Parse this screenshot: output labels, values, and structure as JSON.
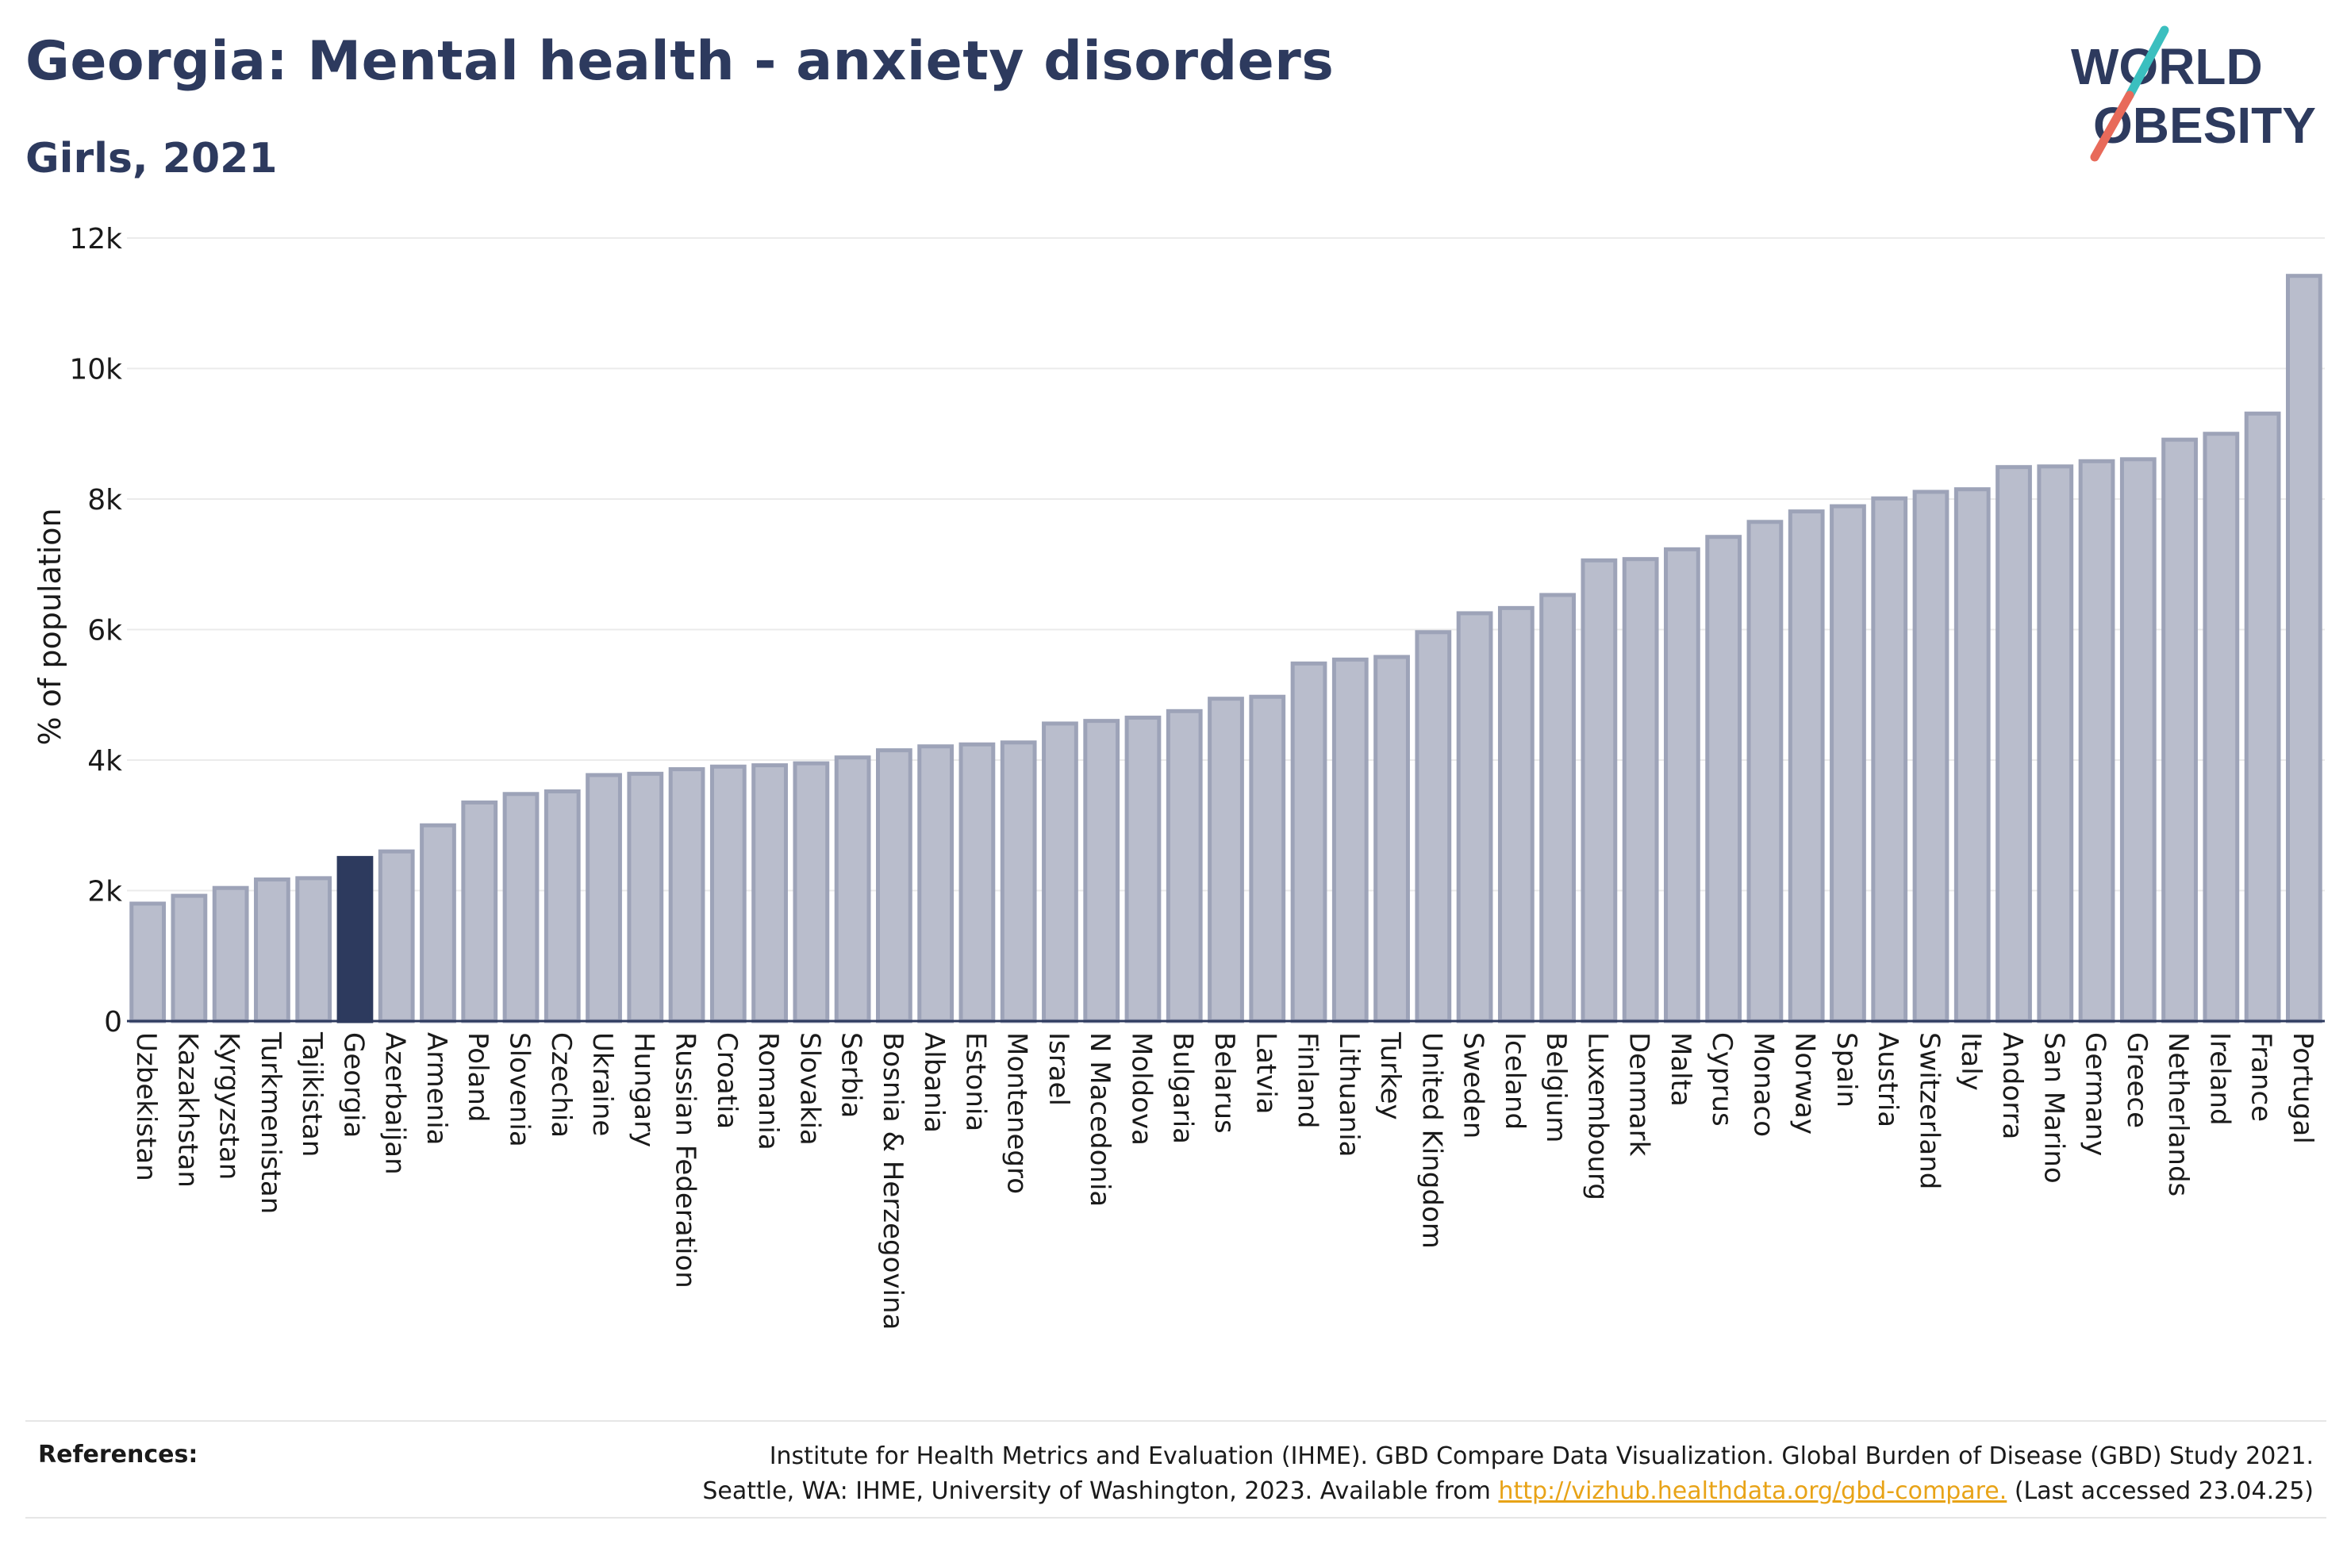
{
  "header": {
    "title": "Georgia: Mental health - anxiety disorders",
    "subtitle": "Girls, 2021"
  },
  "logo": {
    "line1": "WORLD",
    "line2": "OBESITY",
    "colors": {
      "text": "#2d3a5e",
      "slash_teal": "#3bbfbf",
      "slash_coral": "#e86a5a"
    }
  },
  "references": {
    "label": "References:",
    "line1": "Institute for Health Metrics and Evaluation (IHME). GBD Compare Data Visualization. Global Burden of Disease (GBD) Study 2021.",
    "line2_before": "Seattle, WA: IHME, University of Washington, 2023. Available from",
    "link_text": "http://vizhub.healthdata.org/gbd-compare.",
    "line2_after": "(Last accessed 23.04.25)"
  },
  "chart_data": {
    "type": "bar",
    "ylabel": "% of population",
    "ylim": [
      0,
      12000
    ],
    "yticks": [
      0,
      2000,
      4000,
      6000,
      8000,
      10000,
      12000
    ],
    "ytick_labels": [
      "0",
      "2k",
      "4k",
      "6k",
      "8k",
      "10k",
      "12k"
    ],
    "grid": true,
    "highlight": "Georgia",
    "colors": {
      "bar": "#b9bdcc",
      "bar_border": "#9da3b8",
      "highlight": "#2d3a5e"
    },
    "categories": [
      "Uzbekistan",
      "Kazakhstan",
      "Kyrgyzstan",
      "Turkmenistan",
      "Tajikistan",
      "Georgia",
      "Azerbaijan",
      "Armenia",
      "Poland",
      "Slovenia",
      "Czechia",
      "Ukraine",
      "Hungary",
      "Russian Federation",
      "Croatia",
      "Romania",
      "Slovakia",
      "Serbia",
      "Bosnia & Herzegovina",
      "Albania",
      "Estonia",
      "Montenegro",
      "Israel",
      "N Macedonia",
      "Moldova",
      "Bulgaria",
      "Belarus",
      "Latvia",
      "Finland",
      "Lithuania",
      "Turkey",
      "United Kingdom",
      "Sweden",
      "Iceland",
      "Belgium",
      "Luxembourg",
      "Denmark",
      "Malta",
      "Cyprus",
      "Monaco",
      "Norway",
      "Spain",
      "Austria",
      "Switzerland",
      "Italy",
      "Andorra",
      "San Marino",
      "Germany",
      "Greece",
      "Netherlands",
      "Ireland",
      "France",
      "Portugal"
    ],
    "values": [
      1800,
      1920,
      2040,
      2170,
      2190,
      2500,
      2600,
      3000,
      3350,
      3480,
      3520,
      3770,
      3790,
      3860,
      3900,
      3920,
      3950,
      4040,
      4150,
      4210,
      4240,
      4270,
      4560,
      4600,
      4650,
      4750,
      4940,
      4970,
      5480,
      5540,
      5580,
      5960,
      6250,
      6330,
      6530,
      7060,
      7080,
      7230,
      7420,
      7650,
      7810,
      7890,
      8010,
      8110,
      8150,
      8490,
      8500,
      8580,
      8610,
      8910,
      9000,
      9310,
      11420
    ]
  }
}
